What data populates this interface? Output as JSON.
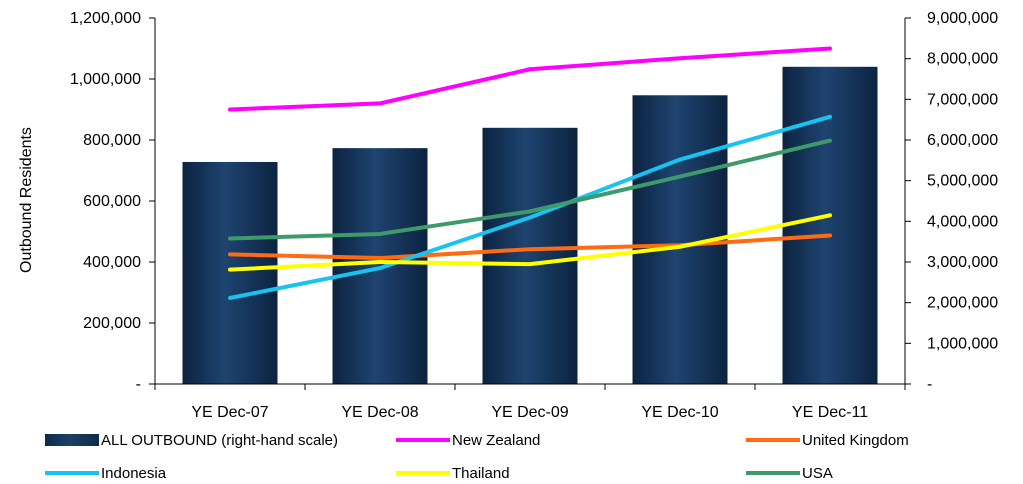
{
  "chart_data": {
    "type": "bar+line",
    "categories": [
      "YE Dec-07",
      "YE Dec-08",
      "YE Dec-09",
      "YE Dec-10",
      "YE Dec-11"
    ],
    "ylabel": "Outbound Residents",
    "y_left": {
      "ylim": [
        0,
        1200000
      ],
      "ticks": [
        "-",
        "200,000",
        "400,000",
        "600,000",
        "800,000",
        "1,000,000",
        "1,200,000"
      ]
    },
    "y_right": {
      "ylim": [
        0,
        9000000
      ],
      "ticks": [
        "-",
        "1,000,000",
        "2,000,000",
        "3,000,000",
        "4,000,000",
        "5,000,000",
        "6,000,000",
        "7,000,000",
        "8,000,000",
        "9,000,000"
      ]
    },
    "bar_series": {
      "name": "ALL OUTBOUND (right-hand scale)",
      "axis": "right",
      "values": [
        5460000,
        5800000,
        6300000,
        7100000,
        7800000
      ],
      "color": "#0f2a4a"
    },
    "series": [
      {
        "name": "New Zealand",
        "color": "#ff00ff",
        "values": [
          900000,
          920000,
          1032000,
          1068000,
          1100000
        ]
      },
      {
        "name": "United Kingdom",
        "color": "#ff6a13",
        "values": [
          425000,
          413000,
          442000,
          455000,
          487000
        ]
      },
      {
        "name": "Indonesia",
        "color": "#19c3f0",
        "values": [
          282000,
          380000,
          546000,
          736000,
          876000
        ]
      },
      {
        "name": "Thailand",
        "color": "#ffff00",
        "values": [
          375000,
          400000,
          393000,
          450000,
          553000
        ]
      },
      {
        "name": "USA",
        "color": "#3e9a6a",
        "values": [
          477000,
          492000,
          566000,
          680000,
          798000
        ]
      }
    ],
    "legend": "bottom",
    "grid": false
  }
}
